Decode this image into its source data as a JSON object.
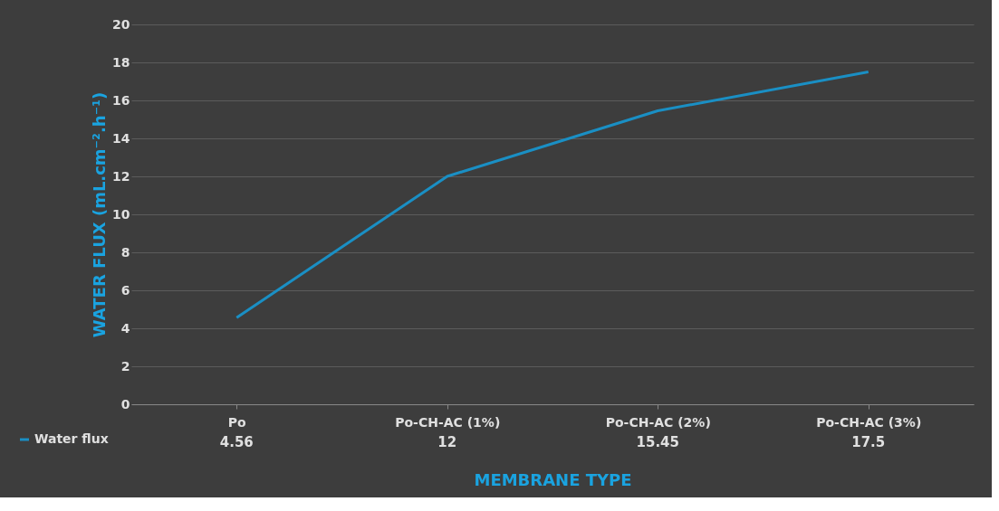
{
  "chart_data": {
    "type": "line",
    "xlabel": "MEMBRANE TYPE",
    "ylabel": "WATER FLUX (mL.cm⁻².h⁻¹)",
    "categories": [
      "Po",
      "Po-CH-AC (1%)",
      "Po-CH-AC (2%)",
      "Po-CH-AC (3%)"
    ],
    "series": [
      {
        "name": "Water flux",
        "color": "#1a8fc4",
        "values": [
          4.56,
          12,
          15.45,
          17.5
        ]
      }
    ],
    "ylim": [
      0,
      20
    ],
    "yticks": [
      0,
      2,
      4,
      6,
      8,
      10,
      12,
      14,
      16,
      18,
      20
    ],
    "grid": "y",
    "legend": "bottom",
    "data_labels": true,
    "marker": "none",
    "line_style": "solid"
  }
}
